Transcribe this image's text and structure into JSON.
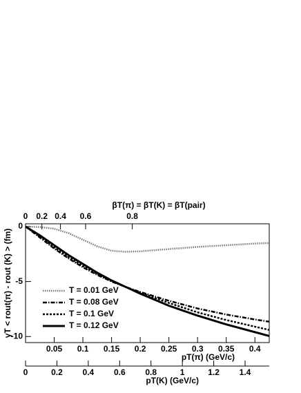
{
  "chart_data": {
    "type": "line",
    "title": "βT(π) = βT(K) = βT(pair)",
    "y_label": "γT < rout(π) - rout (K) > (fm)",
    "x_label": "pT(π) (GeV/c)",
    "xk_label": "pT(K) (GeV/c)",
    "x": [
      0,
      0.025,
      0.05,
      0.075,
      0.1,
      0.125,
      0.15,
      0.175,
      0.2,
      0.25,
      0.3,
      0.35,
      0.4,
      0.425
    ],
    "xlim": [
      0,
      0.425
    ],
    "xticks": [
      0.05,
      0.1,
      0.15,
      0.2,
      0.25,
      0.3,
      0.35,
      0.4
    ],
    "xklim": [
      0,
      1.554
    ],
    "xkticks": [
      0,
      0.2,
      0.4,
      0.6,
      0.8,
      1,
      1.2,
      1.4
    ],
    "x2ticks": [
      0,
      0.2,
      0.4,
      0.6,
      0.8
    ],
    "ylim": [
      -10.55,
      0.25
    ],
    "yticks": [
      0,
      -5,
      -10
    ],
    "series": [
      {
        "name": "T = 0.01 GeV",
        "color": "#777777",
        "width": 2.5,
        "dash": "1.5 1.5",
        "values": [
          0,
          -0.05,
          -0.2,
          -0.6,
          -1.2,
          -1.8,
          -2.2,
          -2.3,
          -2.25,
          -2.05,
          -1.85,
          -1.7,
          -1.55,
          -1.5
        ]
      },
      {
        "name": "T = 0.08 GeV",
        "color": "#000000",
        "width": 2.5,
        "dash": "6 2 1.5 2",
        "values": [
          0,
          -1.0,
          -2.0,
          -2.9,
          -3.7,
          -4.4,
          -5.0,
          -5.5,
          -5.95,
          -6.75,
          -7.45,
          -8.0,
          -8.45,
          -8.65
        ]
      },
      {
        "name": "T = 0.1 GeV",
        "color": "#000000",
        "width": 2.5,
        "dash": "3 2",
        "values": [
          0,
          -0.9,
          -1.9,
          -2.8,
          -3.6,
          -4.3,
          -4.95,
          -5.5,
          -6.0,
          -6.95,
          -7.8,
          -8.5,
          -9.1,
          -9.4
        ]
      },
      {
        "name": "T = 0.12 GeV",
        "color": "#000000",
        "width": 3,
        "dash": "",
        "values": [
          0,
          -0.8,
          -1.7,
          -2.6,
          -3.4,
          -4.2,
          -4.9,
          -5.5,
          -6.1,
          -7.2,
          -8.1,
          -8.9,
          -9.6,
          -9.95
        ]
      }
    ]
  }
}
